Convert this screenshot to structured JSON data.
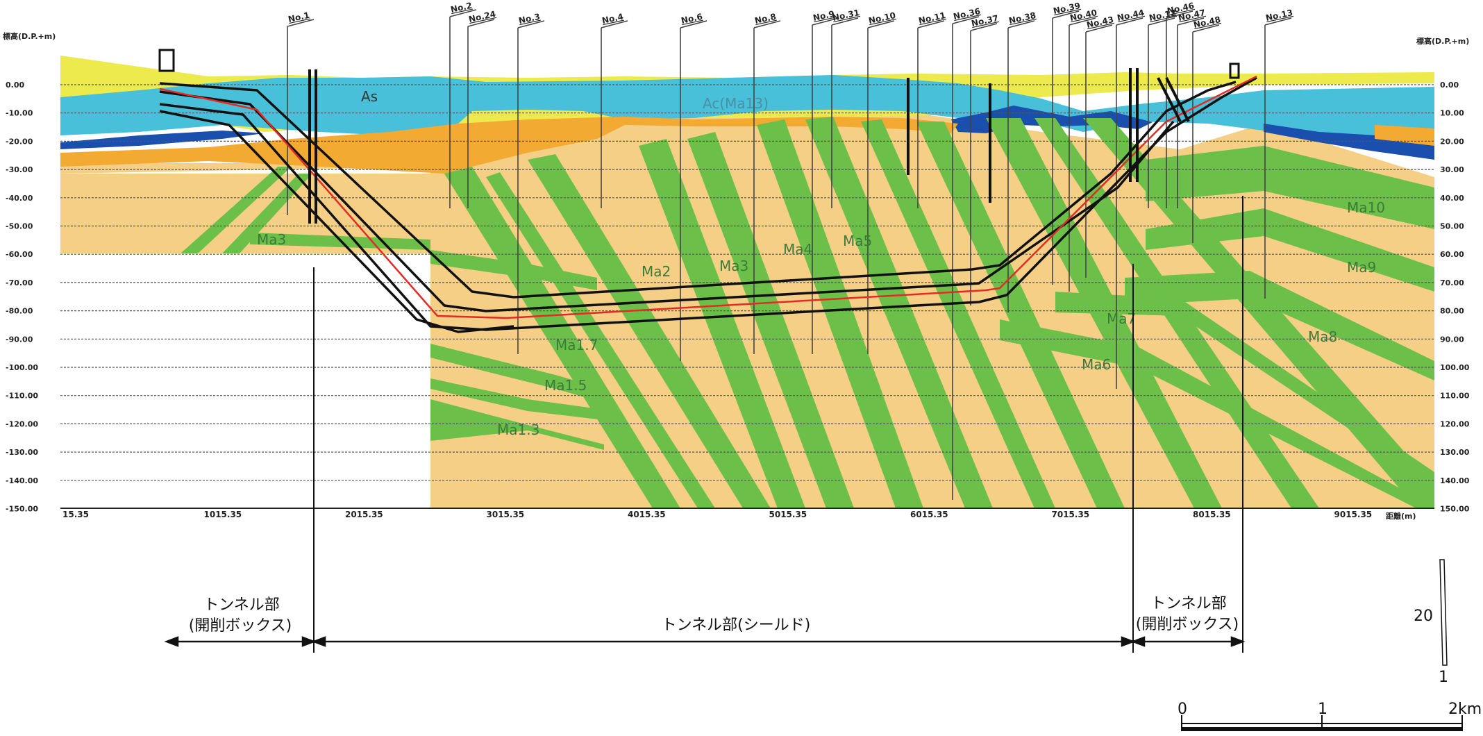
{
  "axes": {
    "left_title": "標高(D.P.+m)",
    "right_title": "標高(D.P.+m)",
    "x_title": "距離(m)",
    "y_left_labels": [
      "0.00",
      "-10.00",
      "-20.00",
      "-30.00",
      "-40.00",
      "-50.00",
      "-60.00",
      "-70.00",
      "-80.00",
      "-90.00",
      "-100.00",
      "-110.00",
      "-120.00",
      "-130.00",
      "-140.00",
      "-150.00"
    ],
    "y_right_labels": [
      "0.00",
      "10.00",
      "20.00",
      "30.00",
      "40.00",
      "50.00",
      "60.00",
      "70.00",
      "80.00",
      "90.00",
      "100.00",
      "110.00",
      "120.00",
      "130.00",
      "140.00",
      "150.00"
    ],
    "x_labels": [
      "15.35",
      "1015.35",
      "2015.35",
      "3015.35",
      "4015.35",
      "5015.35",
      "6015.35",
      "7015.35",
      "8015.35",
      "9015.35"
    ]
  },
  "boreholes": [
    {
      "label": "No.1"
    },
    {
      "label": "No.2"
    },
    {
      "label": "No.24"
    },
    {
      "label": "No.3"
    },
    {
      "label": "No.4"
    },
    {
      "label": "No.6"
    },
    {
      "label": "No.8"
    },
    {
      "label": "No.9"
    },
    {
      "label": "No.31"
    },
    {
      "label": "No.10"
    },
    {
      "label": "No.11"
    },
    {
      "label": "No.36"
    },
    {
      "label": "No.37"
    },
    {
      "label": "No.38"
    },
    {
      "label": "No.39"
    },
    {
      "label": "No.40"
    },
    {
      "label": "No.43"
    },
    {
      "label": "No.44"
    },
    {
      "label": "No.12"
    },
    {
      "label": "No.46"
    },
    {
      "label": "No.47"
    },
    {
      "label": "No.48"
    },
    {
      "label": "No.13"
    }
  ],
  "layers": [
    {
      "label": "As"
    },
    {
      "label": "Ac(Ma13)"
    },
    {
      "label": "Ma3"
    },
    {
      "label": "Ma2"
    },
    {
      "label": "Ma3"
    },
    {
      "label": "Ma4"
    },
    {
      "label": "Ma5"
    },
    {
      "label": "Ma1.7"
    },
    {
      "label": "Ma1.5"
    },
    {
      "label": "Ma1.3"
    },
    {
      "label": "Ma10"
    },
    {
      "label": "Ma9"
    },
    {
      "label": "Ma8"
    },
    {
      "label": "Ma7"
    },
    {
      "label": "Ma6"
    }
  ],
  "sections": {
    "left_line1": "トンネル部",
    "left_line2": "(開削ボックス)",
    "middle": "トンネル部(シールド)",
    "right_line1": "トンネル部",
    "right_line2": "(開削ボックス)"
  },
  "vertical_scale": {
    "top": "20",
    "bottom": "1"
  },
  "scale_bar": {
    "labels": [
      "0",
      "1",
      "2km"
    ]
  },
  "colors": {
    "fill_sand": "#f6cf86",
    "fill_yellow": "#ecea4c",
    "fill_cyan": "#49c0da",
    "fill_blue": "#1a4fae",
    "fill_orange": "#f3aa33",
    "fill_green": "#6cc04a",
    "tunnel_line": "#111111",
    "centerline": "#e32a24"
  }
}
